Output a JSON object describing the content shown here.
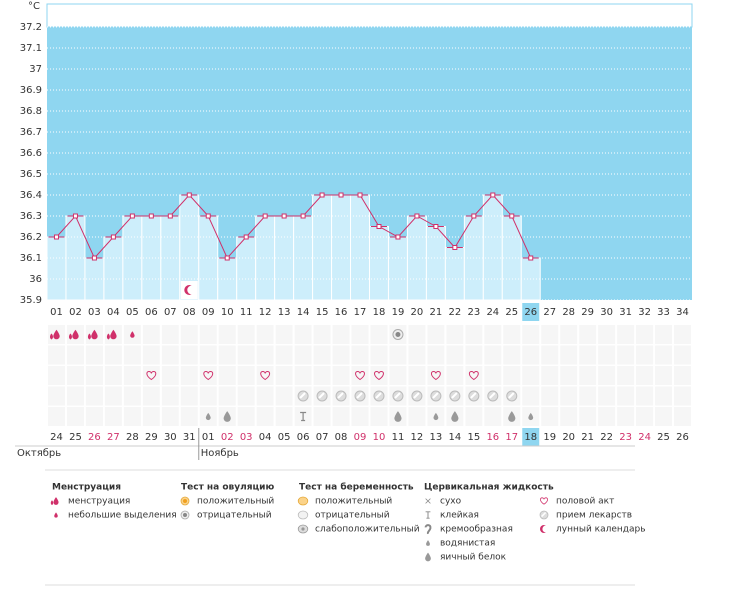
{
  "chart_data": {
    "type": "line",
    "y_unit": "°C",
    "ylim": [
      35.9,
      37.2
    ],
    "yticks": [
      35.9,
      36,
      36.1,
      36.2,
      36.3,
      36.4,
      36.5,
      36.6,
      36.7,
      36.8,
      36.9,
      37,
      37.1,
      37.2
    ],
    "categories": [
      "01",
      "02",
      "03",
      "04",
      "05",
      "06",
      "07",
      "08",
      "09",
      "10",
      "11",
      "12",
      "13",
      "14",
      "15",
      "16",
      "17",
      "18",
      "19",
      "20",
      "21",
      "22",
      "23",
      "24",
      "25",
      "26",
      "27",
      "28",
      "29",
      "30",
      "31",
      "32",
      "33",
      "34"
    ],
    "values": [
      36.2,
      36.3,
      36.1,
      36.2,
      36.3,
      36.3,
      36.3,
      36.4,
      36.3,
      36.1,
      36.2,
      36.3,
      36.3,
      36.3,
      36.4,
      36.4,
      36.4,
      36.25,
      36.2,
      36.3,
      36.25,
      36.15,
      36.3,
      36.4,
      36.3,
      36.1,
      null,
      null,
      null,
      null,
      null,
      null,
      null,
      null
    ],
    "highlight_day": 25,
    "line_color": "#d0306a",
    "bar_color": "#cdeefb",
    "background_color": "#8fd6f0",
    "grid": true,
    "moon_days": [
      8
    ],
    "marks": [
      {
        "row": 0,
        "day": 1,
        "icon": "menstruation"
      },
      {
        "row": 0,
        "day": 2,
        "icon": "menstruation"
      },
      {
        "row": 0,
        "day": 3,
        "icon": "menstruation"
      },
      {
        "row": 0,
        "day": 4,
        "icon": "menstruation"
      },
      {
        "row": 0,
        "day": 5,
        "icon": "spotting"
      },
      {
        "row": 0,
        "day": 19,
        "icon": "ovu-neg"
      },
      {
        "row": 2,
        "day": 6,
        "icon": "heart"
      },
      {
        "row": 2,
        "day": 9,
        "icon": "heart"
      },
      {
        "row": 2,
        "day": 12,
        "icon": "heart"
      },
      {
        "row": 2,
        "day": 17,
        "icon": "heart"
      },
      {
        "row": 2,
        "day": 18,
        "icon": "heart"
      },
      {
        "row": 2,
        "day": 21,
        "icon": "heart"
      },
      {
        "row": 2,
        "day": 23,
        "icon": "heart"
      },
      {
        "row": 3,
        "day": 14,
        "icon": "pill"
      },
      {
        "row": 3,
        "day": 15,
        "icon": "pill"
      },
      {
        "row": 3,
        "day": 16,
        "icon": "pill"
      },
      {
        "row": 3,
        "day": 17,
        "icon": "pill"
      },
      {
        "row": 3,
        "day": 18,
        "icon": "pill"
      },
      {
        "row": 3,
        "day": 19,
        "icon": "pill"
      },
      {
        "row": 3,
        "day": 20,
        "icon": "pill"
      },
      {
        "row": 3,
        "day": 21,
        "icon": "pill"
      },
      {
        "row": 3,
        "day": 22,
        "icon": "pill"
      },
      {
        "row": 3,
        "day": 23,
        "icon": "pill"
      },
      {
        "row": 3,
        "day": 24,
        "icon": "pill"
      },
      {
        "row": 3,
        "day": 25,
        "icon": "pill"
      },
      {
        "row": 4,
        "day": 9,
        "icon": "watery"
      },
      {
        "row": 4,
        "day": 10,
        "icon": "eggwhite"
      },
      {
        "row": 4,
        "day": 14,
        "icon": "sticky"
      },
      {
        "row": 4,
        "day": 19,
        "icon": "eggwhite"
      },
      {
        "row": 4,
        "day": 21,
        "icon": "watery"
      },
      {
        "row": 4,
        "day": 22,
        "icon": "eggwhite"
      },
      {
        "row": 4,
        "day": 25,
        "icon": "eggwhite"
      },
      {
        "row": 4,
        "day": 26,
        "icon": "watery"
      }
    ]
  },
  "calendar": {
    "dates": [
      "24",
      "25",
      "26",
      "27",
      "28",
      "29",
      "30",
      "31",
      "01",
      "02",
      "03",
      "04",
      "05",
      "06",
      "07",
      "08",
      "09",
      "10",
      "11",
      "12",
      "13",
      "14",
      "15",
      "16",
      "17",
      "18",
      "19",
      "20",
      "21",
      "22",
      "23",
      "24",
      "25",
      "26"
    ],
    "weekend": [
      false,
      false,
      true,
      true,
      false,
      false,
      false,
      false,
      false,
      true,
      true,
      false,
      false,
      false,
      false,
      false,
      true,
      true,
      false,
      false,
      false,
      false,
      false,
      true,
      true,
      false,
      false,
      false,
      false,
      false,
      true,
      true,
      false,
      false
    ],
    "today": 25,
    "months": [
      {
        "label": "Октябрь",
        "start": 0
      },
      {
        "label": "Ноябрь",
        "start": 8
      }
    ]
  },
  "legend": [
    {
      "title": "Менструация",
      "items": [
        {
          "label": "менструация",
          "icon": "menstruation"
        },
        {
          "label": "небольшие выделения",
          "icon": "spotting"
        }
      ]
    },
    {
      "title": "Тест на овуляцию",
      "items": [
        {
          "label": "положительный",
          "icon": "ovu-pos"
        },
        {
          "label": "отрицательный",
          "icon": "ovu-neg"
        }
      ]
    },
    {
      "title": "Тест на беременность",
      "items": [
        {
          "label": "положительный",
          "icon": "preg-pos"
        },
        {
          "label": "отрицательный",
          "icon": "preg-neg"
        },
        {
          "label": "слабоположительный",
          "icon": "preg-weak"
        }
      ]
    },
    {
      "title": "Цервикальная жидкость",
      "items": [
        {
          "label": "сухо",
          "icon": "dry"
        },
        {
          "label": "клейкая",
          "icon": "sticky"
        },
        {
          "label": "кремообразная",
          "icon": "creamy"
        },
        {
          "label": "водянистая",
          "icon": "watery"
        },
        {
          "label": "яичный белок",
          "icon": "eggwhite"
        }
      ]
    },
    {
      "items": [
        {
          "label": "половой акт",
          "icon": "heart"
        },
        {
          "label": "прием лекарств",
          "icon": "pill"
        },
        {
          "label": "лунный календарь",
          "icon": "moon"
        }
      ]
    }
  ]
}
